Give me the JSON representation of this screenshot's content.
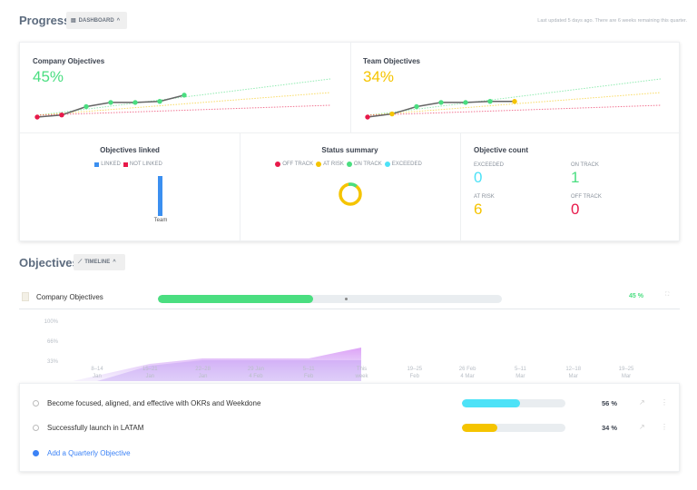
{
  "header": {
    "title": "Progress",
    "view_button": "DASHBOARD",
    "last_updated": "Last updated 5 days ago. There are 6 weeks remaining this quarter."
  },
  "company": {
    "title": "Company Objectives",
    "percent": "45%",
    "color": "#4ade80",
    "values": [
      0,
      2,
      10,
      14,
      14,
      15,
      21
    ],
    "dot_colors": [
      "#e8194a",
      "#e8194a",
      "#4ade80",
      "#4ade80",
      "#4ade80",
      "#4ade80",
      "#4ade80"
    ]
  },
  "team": {
    "title": "Team Objectives",
    "percent": "34%",
    "color": "#f5c400",
    "values": [
      0,
      3,
      10,
      14,
      14,
      15,
      15
    ],
    "dot_colors": [
      "#e8194a",
      "#f5c400",
      "#4ade80",
      "#4ade80",
      "#4ade80",
      "#4ade80",
      "#f5c400"
    ]
  },
  "linked": {
    "title": "Objectives linked",
    "legend": [
      "LINKED",
      "NOT LINKED"
    ],
    "colors": [
      "#3b8ff0",
      "#e8194a"
    ],
    "bar_label": "Team"
  },
  "status": {
    "title": "Status summary",
    "legend": [
      "OFF TRACK",
      "AT RISK",
      "ON TRACK",
      "EXCEEDED"
    ],
    "colors": [
      "#e8194a",
      "#f5c400",
      "#4ade80",
      "#4de2f7"
    ]
  },
  "count": {
    "title": "Objective count",
    "items": [
      {
        "label": "EXCEEDED",
        "value": "0",
        "color": "#4de2f7"
      },
      {
        "label": "ON TRACK",
        "value": "1",
        "color": "#4ade80"
      },
      {
        "label": "AT RISK",
        "value": "6",
        "color": "#f5c400"
      },
      {
        "label": "OFF TRACK",
        "value": "0",
        "color": "#e8194a"
      }
    ]
  },
  "objectives": {
    "title": "Objectives",
    "view_button": "TIMELINE",
    "company_row": {
      "title": "Company Objectives",
      "percent": "45 %",
      "progress": 45
    },
    "y_ticks": [
      "100%",
      "66%",
      "33%"
    ],
    "x_ticks": [
      [
        "8–14",
        "Jan"
      ],
      [
        "15–21",
        "Jan"
      ],
      [
        "22–28",
        "Jan"
      ],
      [
        "29 Jan",
        "4 Feb"
      ],
      [
        "5–11",
        "Feb"
      ],
      [
        "This",
        "week"
      ],
      [
        "19–25",
        "Feb"
      ],
      [
        "26 Feb",
        "4 Mar"
      ],
      [
        "5–11",
        "Mar"
      ],
      [
        "12–18",
        "Mar"
      ],
      [
        "19–25",
        "Mar"
      ]
    ],
    "items": [
      {
        "title": "Become focused, aligned, and effective with OKRs and Weekdone",
        "percent": "56 %",
        "progress": 56,
        "color": "#4de2f7"
      },
      {
        "title": "Successfully launch in LATAM",
        "percent": "34 %",
        "progress": 34,
        "color": "#f5c400"
      }
    ],
    "add_label": "Add a Quarterly Objective"
  }
}
